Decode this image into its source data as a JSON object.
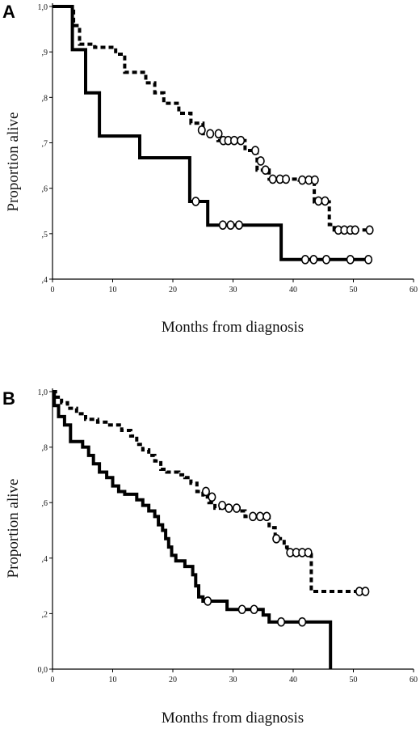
{
  "chart_data": [
    {
      "panel_label": "A",
      "type": "line",
      "xlabel": "Months from diagnosis",
      "ylabel": "Proportion alive",
      "xlim": [
        0,
        60
      ],
      "ylim": [
        0.4,
        1.0
      ],
      "x_ticks": [
        0,
        10,
        20,
        30,
        40,
        50,
        60
      ],
      "x_tick_labels": [
        "0",
        "10",
        "20",
        "30",
        "40",
        "50",
        "60"
      ],
      "y_ticks": [
        0.4,
        0.5,
        0.6,
        0.7,
        0.8,
        0.9,
        1.0
      ],
      "y_tick_labels": [
        ",4",
        ",5",
        ",6",
        ",7",
        ",8",
        ",9",
        "1,0"
      ],
      "series": [
        {
          "style": "solid",
          "steps": [
            [
              0,
              1.0
            ],
            [
              3.3,
              1.0
            ],
            [
              3.3,
              0.905
            ],
            [
              5.5,
              0.905
            ],
            [
              5.5,
              0.81
            ],
            [
              7.8,
              0.81
            ],
            [
              7.8,
              0.715
            ],
            [
              14.5,
              0.715
            ],
            [
              14.5,
              0.667
            ],
            [
              22.8,
              0.667
            ],
            [
              22.8,
              0.571
            ],
            [
              25.8,
              0.571
            ],
            [
              25.8,
              0.519
            ],
            [
              38,
              0.519
            ],
            [
              38,
              0.443
            ],
            [
              53,
              0.443
            ]
          ],
          "censored": [
            [
              23.8,
              0.571
            ],
            [
              28.3,
              0.519
            ],
            [
              29.6,
              0.519
            ],
            [
              31,
              0.519
            ],
            [
              42,
              0.443
            ],
            [
              43.4,
              0.443
            ],
            [
              45.5,
              0.443
            ],
            [
              49.5,
              0.443
            ],
            [
              52.5,
              0.443
            ]
          ]
        },
        {
          "style": "dashed",
          "steps": [
            [
              0,
              1.0
            ],
            [
              3.5,
              1.0
            ],
            [
              3.5,
              0.958
            ],
            [
              4.5,
              0.958
            ],
            [
              4.5,
              0.917
            ],
            [
              7,
              0.917
            ],
            [
              7,
              0.91
            ],
            [
              10.5,
              0.91
            ],
            [
              10.5,
              0.895
            ],
            [
              12,
              0.895
            ],
            [
              12,
              0.855
            ],
            [
              15.5,
              0.855
            ],
            [
              15.5,
              0.832
            ],
            [
              17,
              0.832
            ],
            [
              17,
              0.81
            ],
            [
              18.5,
              0.81
            ],
            [
              18.5,
              0.787
            ],
            [
              21,
              0.787
            ],
            [
              21,
              0.765
            ],
            [
              23,
              0.765
            ],
            [
              23,
              0.743
            ],
            [
              25,
              0.743
            ],
            [
              25,
              0.72
            ],
            [
              27.5,
              0.72
            ],
            [
              27.5,
              0.705
            ],
            [
              32,
              0.705
            ],
            [
              32,
              0.683
            ],
            [
              34,
              0.683
            ],
            [
              34,
              0.64
            ],
            [
              36,
              0.64
            ],
            [
              36,
              0.62
            ],
            [
              41,
              0.62
            ],
            [
              41,
              0.618
            ],
            [
              43.5,
              0.618
            ],
            [
              43.5,
              0.57
            ],
            [
              46,
              0.57
            ],
            [
              46,
              0.52
            ],
            [
              46.8,
              0.52
            ],
            [
              46.8,
              0.508
            ],
            [
              53,
              0.508
            ]
          ],
          "censored": [
            [
              24.8,
              0.728
            ],
            [
              26.2,
              0.72
            ],
            [
              27.6,
              0.72
            ],
            [
              28.4,
              0.705
            ],
            [
              29.2,
              0.705
            ],
            [
              30.2,
              0.705
            ],
            [
              31.3,
              0.705
            ],
            [
              33.7,
              0.683
            ],
            [
              34.6,
              0.66
            ],
            [
              35.4,
              0.64
            ],
            [
              36.6,
              0.62
            ],
            [
              37.8,
              0.62
            ],
            [
              38.8,
              0.62
            ],
            [
              41.5,
              0.618
            ],
            [
              42.6,
              0.618
            ],
            [
              43.6,
              0.618
            ],
            [
              44.2,
              0.572
            ],
            [
              45.3,
              0.572
            ],
            [
              47.5,
              0.508
            ],
            [
              48.5,
              0.508
            ],
            [
              49.5,
              0.508
            ],
            [
              50.3,
              0.508
            ],
            [
              52.7,
              0.508
            ]
          ]
        }
      ]
    },
    {
      "panel_label": "B",
      "type": "line",
      "xlabel": "Months from diagnosis",
      "ylabel": "Proportion alive",
      "xlim": [
        0,
        60
      ],
      "ylim": [
        0.0,
        1.0
      ],
      "x_ticks": [
        0,
        10,
        20,
        30,
        40,
        50,
        60
      ],
      "x_tick_labels": [
        "0",
        "10",
        "20",
        "30",
        "40",
        "50",
        "60"
      ],
      "y_ticks": [
        0.0,
        0.2,
        0.4,
        0.6,
        0.8,
        1.0
      ],
      "y_tick_labels": [
        "0,0",
        ",2",
        ",4",
        ",6",
        ",8",
        "1,0"
      ],
      "series": [
        {
          "style": "solid",
          "steps": [
            [
              0,
              1.0
            ],
            [
              0.3,
              1.0
            ],
            [
              0.3,
              0.95
            ],
            [
              1,
              0.95
            ],
            [
              1,
              0.91
            ],
            [
              2,
              0.91
            ],
            [
              2,
              0.88
            ],
            [
              3,
              0.88
            ],
            [
              3,
              0.82
            ],
            [
              5,
              0.82
            ],
            [
              5,
              0.8
            ],
            [
              6,
              0.8
            ],
            [
              6,
              0.77
            ],
            [
              6.8,
              0.77
            ],
            [
              6.8,
              0.74
            ],
            [
              7.8,
              0.74
            ],
            [
              7.8,
              0.71
            ],
            [
              9,
              0.71
            ],
            [
              9,
              0.69
            ],
            [
              10,
              0.69
            ],
            [
              10,
              0.66
            ],
            [
              11,
              0.66
            ],
            [
              11,
              0.64
            ],
            [
              12,
              0.64
            ],
            [
              12,
              0.63
            ],
            [
              14,
              0.63
            ],
            [
              14,
              0.61
            ],
            [
              15,
              0.61
            ],
            [
              15,
              0.59
            ],
            [
              16,
              0.59
            ],
            [
              16,
              0.57
            ],
            [
              17,
              0.57
            ],
            [
              17,
              0.55
            ],
            [
              17.6,
              0.55
            ],
            [
              17.6,
              0.52
            ],
            [
              18.3,
              0.52
            ],
            [
              18.3,
              0.5
            ],
            [
              18.8,
              0.5
            ],
            [
              18.8,
              0.47
            ],
            [
              19.3,
              0.47
            ],
            [
              19.3,
              0.44
            ],
            [
              19.8,
              0.44
            ],
            [
              19.8,
              0.41
            ],
            [
              20.5,
              0.41
            ],
            [
              20.5,
              0.39
            ],
            [
              22,
              0.39
            ],
            [
              22,
              0.37
            ],
            [
              23.3,
              0.37
            ],
            [
              23.3,
              0.34
            ],
            [
              23.8,
              0.34
            ],
            [
              23.8,
              0.3
            ],
            [
              24.3,
              0.3
            ],
            [
              24.3,
              0.26
            ],
            [
              25,
              0.26
            ],
            [
              25,
              0.245
            ],
            [
              29,
              0.245
            ],
            [
              29,
              0.215
            ],
            [
              35,
              0.215
            ],
            [
              35,
              0.195
            ],
            [
              36,
              0.195
            ],
            [
              36,
              0.17
            ],
            [
              46.2,
              0.17
            ],
            [
              46.2,
              0.0
            ]
          ],
          "censored": [
            [
              25.8,
              0.245
            ],
            [
              31.5,
              0.215
            ],
            [
              33.5,
              0.215
            ],
            [
              38,
              0.17
            ],
            [
              41.5,
              0.17
            ]
          ]
        },
        {
          "style": "dashed",
          "steps": [
            [
              0,
              1.0
            ],
            [
              0.5,
              1.0
            ],
            [
              0.5,
              0.98
            ],
            [
              1.5,
              0.98
            ],
            [
              1.5,
              0.96
            ],
            [
              2.5,
              0.96
            ],
            [
              2.5,
              0.94
            ],
            [
              4,
              0.94
            ],
            [
              4,
              0.92
            ],
            [
              5.5,
              0.92
            ],
            [
              5.5,
              0.9
            ],
            [
              7.5,
              0.9
            ],
            [
              7.5,
              0.89
            ],
            [
              9.5,
              0.89
            ],
            [
              9.5,
              0.88
            ],
            [
              11.5,
              0.88
            ],
            [
              11.5,
              0.86
            ],
            [
              13,
              0.86
            ],
            [
              13,
              0.84
            ],
            [
              14,
              0.84
            ],
            [
              14,
              0.81
            ],
            [
              15,
              0.81
            ],
            [
              15,
              0.79
            ],
            [
              16,
              0.79
            ],
            [
              16,
              0.77
            ],
            [
              17,
              0.77
            ],
            [
              17,
              0.75
            ],
            [
              18,
              0.75
            ],
            [
              18,
              0.72
            ],
            [
              19,
              0.72
            ],
            [
              19,
              0.71
            ],
            [
              21,
              0.71
            ],
            [
              21,
              0.7
            ],
            [
              22,
              0.7
            ],
            [
              22,
              0.69
            ],
            [
              23,
              0.69
            ],
            [
              23,
              0.67
            ],
            [
              24,
              0.67
            ],
            [
              24,
              0.64
            ],
            [
              25,
              0.64
            ],
            [
              25,
              0.62
            ],
            [
              26,
              0.62
            ],
            [
              26,
              0.6
            ],
            [
              27,
              0.6
            ],
            [
              27,
              0.58
            ],
            [
              31,
              0.58
            ],
            [
              31,
              0.57
            ],
            [
              32,
              0.57
            ],
            [
              32,
              0.55
            ],
            [
              36,
              0.55
            ],
            [
              36,
              0.51
            ],
            [
              37,
              0.51
            ],
            [
              37,
              0.47
            ],
            [
              38.5,
              0.47
            ],
            [
              38.5,
              0.44
            ],
            [
              39,
              0.44
            ],
            [
              39,
              0.42
            ],
            [
              43,
              0.42
            ],
            [
              43,
              0.28
            ],
            [
              52,
              0.28
            ]
          ],
          "censored": [
            [
              25.5,
              0.64
            ],
            [
              26.5,
              0.62
            ],
            [
              28.2,
              0.59
            ],
            [
              29.3,
              0.58
            ],
            [
              30.6,
              0.58
            ],
            [
              33.3,
              0.55
            ],
            [
              34.5,
              0.55
            ],
            [
              35.6,
              0.55
            ],
            [
              37.2,
              0.47
            ],
            [
              39.5,
              0.42
            ],
            [
              40.5,
              0.42
            ],
            [
              41.5,
              0.42
            ],
            [
              42.5,
              0.42
            ],
            [
              51,
              0.28
            ],
            [
              52,
              0.28
            ]
          ]
        }
      ]
    }
  ]
}
